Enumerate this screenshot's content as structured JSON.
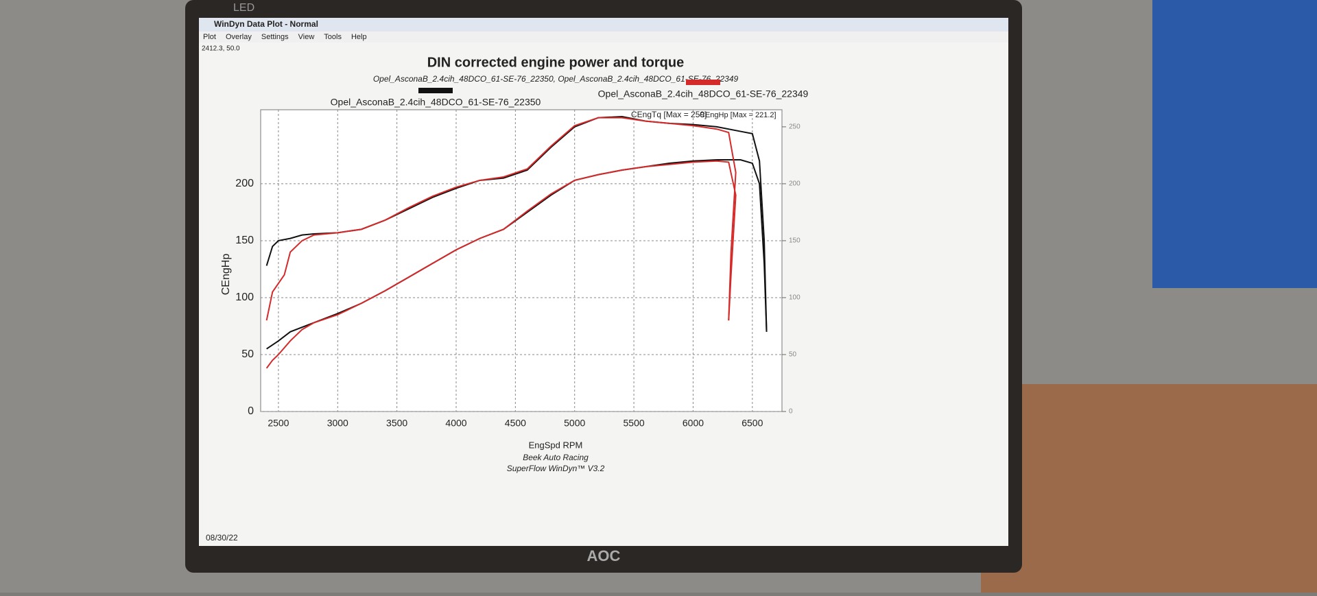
{
  "window": {
    "title": "WinDyn Data Plot - Normal",
    "menu": [
      "Plot",
      "Overlay",
      "Settings",
      "View",
      "Tools",
      "Help"
    ],
    "status": "2412.3, 50.0",
    "date": "08/30/22",
    "bezel_top": "LED",
    "bezel_brand": "AOC"
  },
  "chart_data": {
    "type": "line",
    "title": "DIN corrected engine power and torque",
    "subtitle": "Opel_AsconaB_2.4cih_48DCO_61-SE-76_22350, Opel_AsconaB_2.4cih_48DCO_61-SE-76_22349",
    "x_label": "EngSpd RPM",
    "y_label": "CEngHp",
    "footer": [
      "Beek Auto Racing",
      "SuperFlow WinDyn™ V3.2"
    ],
    "annotations": [
      "CEngTq [Max = 259]",
      "CEngHp [Max = 221.2]"
    ],
    "xlim": [
      2350,
      6750
    ],
    "xticks": [
      2500,
      3000,
      3500,
      4000,
      4500,
      5000,
      5500,
      6000,
      6500
    ],
    "ylim": [
      0,
      265
    ],
    "yticks": [
      0,
      50,
      100,
      150,
      200
    ],
    "y2lim": [
      0,
      265
    ],
    "y2ticks": [
      0,
      50,
      100,
      150,
      200,
      250
    ],
    "grid": true,
    "series": [
      {
        "name": "Opel_AsconaB_2.4cih_48DCO_61-SE-76_22350",
        "color": "#111111",
        "x": [
          2400,
          2500,
          2600,
          2800,
          3000,
          3200,
          3400,
          3600,
          3800,
          4000,
          4200,
          4400,
          4600,
          4800,
          5000,
          5200,
          5400,
          5600,
          5800,
          6000,
          6200,
          6400,
          6500,
          6560,
          6600,
          6620
        ],
        "values": [
          55,
          62,
          70,
          78,
          86,
          95,
          106,
          118,
          130,
          142,
          152,
          160,
          175,
          190,
          203,
          208,
          212,
          215,
          218,
          220,
          221,
          221,
          218,
          200,
          130,
          70
        ]
      },
      {
        "name": "Opel_AsconaB_2.4cih_48DCO_61-SE-76_22349",
        "color": "#d42a2a",
        "x": [
          2400,
          2450,
          2500,
          2600,
          2700,
          2800,
          3000,
          3200,
          3400,
          3600,
          3800,
          4000,
          4200,
          4400,
          4600,
          4800,
          5000,
          5200,
          5400,
          5600,
          5800,
          6000,
          6200,
          6300,
          6360,
          6320,
          6300
        ],
        "values": [
          38,
          45,
          50,
          62,
          72,
          78,
          85,
          95,
          106,
          118,
          130,
          142,
          152,
          160,
          176,
          191,
          203,
          208,
          212,
          215,
          217,
          219,
          220,
          219,
          190,
          120,
          80
        ]
      },
      {
        "color": "#111111",
        "axis": "y2",
        "x": [
          2400,
          2450,
          2500,
          2600,
          2700,
          2800,
          3000,
          3200,
          3400,
          3600,
          3800,
          4000,
          4200,
          4400,
          4600,
          4800,
          5000,
          5200,
          5400,
          5600,
          5800,
          6000,
          6200,
          6400,
          6500,
          6560,
          6600,
          6620
        ],
        "values": [
          128,
          145,
          150,
          152,
          155,
          156,
          157,
          160,
          168,
          178,
          188,
          196,
          203,
          205,
          212,
          232,
          250,
          258,
          259,
          255,
          253,
          252,
          250,
          246,
          244,
          220,
          150,
          70
        ]
      },
      {
        "color": "#d42a2a",
        "axis": "y2",
        "x": [
          2400,
          2450,
          2550,
          2600,
          2700,
          2800,
          3000,
          3200,
          3400,
          3600,
          3800,
          4000,
          4200,
          4400,
          4600,
          4800,
          5000,
          5200,
          5400,
          5600,
          5800,
          6000,
          6200,
          6300,
          6360,
          6320,
          6300
        ],
        "values": [
          80,
          105,
          120,
          140,
          150,
          155,
          157,
          160,
          168,
          179,
          189,
          197,
          203,
          206,
          213,
          233,
          251,
          258,
          258,
          255,
          253,
          251,
          248,
          245,
          210,
          140,
          80
        ]
      }
    ]
  }
}
